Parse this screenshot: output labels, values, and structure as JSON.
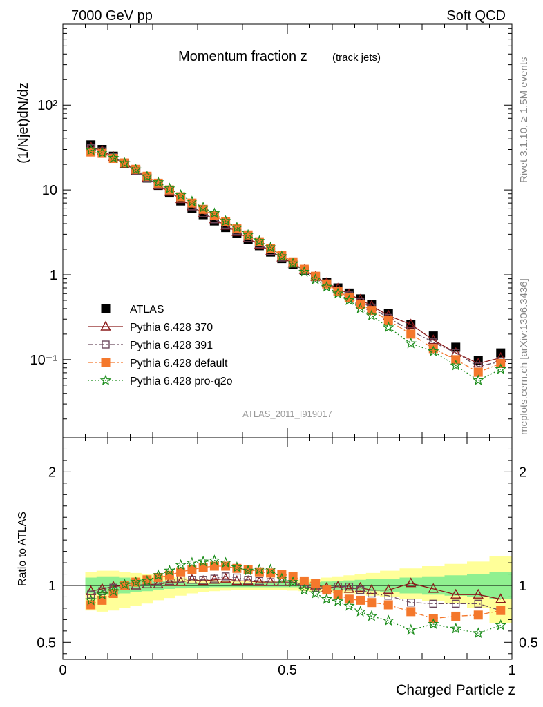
{
  "header": {
    "left": "7000 GeV pp",
    "right": "Soft QCD"
  },
  "side": {
    "rivet": "Rivet 3.1.10, ≥ 1.5M events",
    "mcplots": "mcplots.cern.ch [arXiv:1306.3436]"
  },
  "chart_data": [
    {
      "type": "scatter",
      "title": "Momentum fraction z",
      "title_sub": "(track jets)",
      "analysis_label": "ATLAS_2011_I919017",
      "ylabel": "(1/Njet)dN/dz",
      "yscale": "log",
      "ylim": [
        0.012,
        900
      ],
      "xlim": [
        0,
        1
      ],
      "yticks": [
        0.1,
        1,
        10,
        100
      ],
      "yticklabels": [
        "10⁻¹",
        "1",
        "10",
        "10²"
      ],
      "x": [
        0.0625,
        0.0875,
        0.1125,
        0.1375,
        0.1625,
        0.1875,
        0.2125,
        0.2375,
        0.2625,
        0.2875,
        0.3125,
        0.3375,
        0.3625,
        0.3875,
        0.4125,
        0.4375,
        0.4625,
        0.4875,
        0.5125,
        0.5375,
        0.5625,
        0.5875,
        0.6125,
        0.6375,
        0.6625,
        0.6875,
        0.725,
        0.775,
        0.825,
        0.875,
        0.925,
        0.975
      ],
      "series": [
        {
          "name": "ATLAS",
          "marker": "filled-square",
          "color": "#000000",
          "values": [
            34.0,
            30.0,
            25.0,
            20.5,
            16.8,
            13.8,
            11.3,
            9.2,
            7.4,
            6.1,
            5.1,
            4.3,
            3.6,
            3.1,
            2.6,
            2.2,
            1.85,
            1.55,
            1.32,
            1.12,
            0.95,
            0.82,
            0.7,
            0.61,
            0.52,
            0.45,
            0.35,
            0.26,
            0.19,
            0.14,
            0.098,
            0.12
          ]
        },
        {
          "name": "Pythia 6.428 370",
          "marker": "open-triangle",
          "color": "#8b1a1a",
          "line": "solid",
          "values": [
            32.0,
            29.0,
            24.5,
            20.5,
            16.9,
            13.9,
            11.3,
            9.5,
            7.8,
            6.4,
            5.3,
            4.5,
            3.8,
            3.2,
            2.7,
            2.25,
            1.9,
            1.6,
            1.36,
            1.14,
            0.95,
            0.8,
            0.69,
            0.59,
            0.51,
            0.43,
            0.33,
            0.26,
            0.17,
            0.12,
            0.09,
            0.105
          ]
        },
        {
          "name": "Pythia 6.428 391",
          "marker": "open-square",
          "color": "#6b4a5e",
          "line": "dashdot",
          "values": [
            31.0,
            28.5,
            24.3,
            20.5,
            16.7,
            13.9,
            11.4,
            9.6,
            7.9,
            6.4,
            5.3,
            4.5,
            3.9,
            3.3,
            2.7,
            2.3,
            1.9,
            1.6,
            1.36,
            1.12,
            0.94,
            0.78,
            0.65,
            0.57,
            0.48,
            0.41,
            0.31,
            0.22,
            0.16,
            0.12,
            0.083,
            0.095
          ]
        },
        {
          "name": "Pythia 6.428 default",
          "marker": "filled-square",
          "color": "#f4782c",
          "line": "dashdot",
          "values": [
            28.0,
            27.0,
            23.5,
            20.8,
            17.5,
            14.5,
            12.0,
            10.0,
            8.3,
            7.0,
            5.9,
            5.0,
            4.2,
            3.5,
            2.95,
            2.45,
            2.05,
            1.7,
            1.42,
            1.16,
            0.96,
            0.78,
            0.64,
            0.54,
            0.45,
            0.38,
            0.29,
            0.2,
            0.135,
            0.1,
            0.071,
            0.09
          ]
        },
        {
          "name": "Pythia 6.428 pro-q2o",
          "marker": "star",
          "color": "#1a8c1a",
          "line": "dotted",
          "values": [
            29.5,
            27.5,
            23.8,
            20.7,
            17.4,
            14.4,
            12.3,
            10.4,
            8.7,
            7.3,
            6.2,
            5.3,
            4.3,
            3.6,
            2.95,
            2.5,
            2.1,
            1.65,
            1.36,
            1.08,
            0.88,
            0.72,
            0.6,
            0.5,
            0.4,
            0.33,
            0.24,
            0.155,
            0.125,
            0.085,
            0.057,
            0.077
          ]
        }
      ],
      "legend": "lower-left"
    },
    {
      "type": "scatter",
      "ylabel": "Ratio to ATLAS",
      "xlabel": "Charged Particle z",
      "ylim": [
        0.35,
        2.3
      ],
      "xlim": [
        0,
        1
      ],
      "yticks": [
        0.5,
        1,
        2
      ],
      "yticklabels": [
        "0.5",
        "1",
        "2"
      ],
      "xticks": [
        0,
        0.5,
        1
      ],
      "xticklabels": [
        "0",
        "0.5",
        "1"
      ],
      "band_inner": {
        "color": "#90f090",
        "lo": [
          0.93,
          0.92,
          0.92,
          0.93,
          0.94,
          0.95,
          0.96,
          0.97,
          0.975,
          0.98,
          0.98,
          0.985,
          0.985,
          0.985,
          0.985,
          0.985,
          0.985,
          0.985,
          0.985,
          0.98,
          0.975,
          0.97,
          0.965,
          0.96,
          0.955,
          0.95,
          0.94,
          0.93,
          0.92,
          0.91,
          0.9,
          0.88
        ],
        "hi": [
          1.07,
          1.08,
          1.08,
          1.07,
          1.06,
          1.05,
          1.04,
          1.035,
          1.03,
          1.025,
          1.02,
          1.02,
          1.02,
          1.02,
          1.02,
          1.02,
          1.02,
          1.02,
          1.02,
          1.025,
          1.03,
          1.035,
          1.04,
          1.045,
          1.05,
          1.055,
          1.06,
          1.07,
          1.08,
          1.09,
          1.1,
          1.12
        ]
      },
      "band_outer": {
        "color": "#ffff99",
        "lo": [
          0.78,
          0.77,
          0.78,
          0.8,
          0.82,
          0.84,
          0.87,
          0.89,
          0.91,
          0.93,
          0.94,
          0.95,
          0.955,
          0.96,
          0.96,
          0.96,
          0.96,
          0.96,
          0.955,
          0.95,
          0.945,
          0.94,
          0.935,
          0.93,
          0.92,
          0.91,
          0.9,
          0.88,
          0.86,
          0.84,
          0.8,
          0.67
        ],
        "hi": [
          1.12,
          1.13,
          1.13,
          1.12,
          1.11,
          1.1,
          1.09,
          1.08,
          1.07,
          1.06,
          1.05,
          1.045,
          1.04,
          1.04,
          1.04,
          1.04,
          1.04,
          1.04,
          1.045,
          1.05,
          1.06,
          1.07,
          1.08,
          1.09,
          1.1,
          1.11,
          1.13,
          1.15,
          1.17,
          1.19,
          1.21,
          1.26
        ]
      },
      "series": [
        {
          "name": "Pythia 6.428 370",
          "marker": "open-triangle",
          "color": "#8b1a1a",
          "line": "solid",
          "values": [
            0.95,
            0.97,
            0.99,
            1.0,
            1.0,
            1.01,
            1.01,
            1.03,
            1.03,
            1.05,
            1.04,
            1.05,
            1.06,
            1.04,
            1.04,
            1.03,
            1.03,
            1.03,
            1.03,
            1.01,
            1.0,
            0.98,
            0.99,
            0.97,
            0.98,
            0.96,
            0.96,
            1.02,
            0.97,
            0.92,
            0.92,
            0.88
          ]
        },
        {
          "name": "Pythia 6.428 391",
          "marker": "open-square",
          "color": "#6b4a5e",
          "line": "dashdot",
          "values": [
            0.92,
            0.95,
            0.98,
            1.0,
            1.0,
            1.01,
            1.01,
            1.04,
            1.06,
            1.05,
            1.05,
            1.06,
            1.08,
            1.07,
            1.05,
            1.04,
            1.03,
            1.03,
            1.03,
            0.99,
            0.98,
            0.97,
            0.99,
            0.99,
            0.96,
            0.93,
            0.91,
            0.85,
            0.84,
            0.84,
            0.84,
            0.78
          ]
        },
        {
          "name": "Pythia 6.428 default",
          "marker": "filled-square",
          "color": "#f4782c",
          "line": "dashdot",
          "values": [
            0.83,
            0.87,
            0.93,
            1.0,
            1.03,
            1.05,
            1.07,
            1.09,
            1.12,
            1.14,
            1.16,
            1.17,
            1.17,
            1.15,
            1.14,
            1.12,
            1.11,
            1.1,
            1.08,
            1.04,
            1.02,
            0.96,
            0.92,
            0.88,
            0.87,
            0.85,
            0.83,
            0.77,
            0.71,
            0.73,
            0.74,
            0.78
          ]
        },
        {
          "name": "Pythia 6.428 pro-q2o",
          "marker": "star",
          "color": "#1a8c1a",
          "line": "dotted",
          "values": [
            0.87,
            0.92,
            0.95,
            1.01,
            1.03,
            1.04,
            1.09,
            1.13,
            1.18,
            1.2,
            1.21,
            1.22,
            1.2,
            1.16,
            1.13,
            1.14,
            1.14,
            1.06,
            1.03,
            0.96,
            0.93,
            0.88,
            0.86,
            0.82,
            0.77,
            0.73,
            0.69,
            0.61,
            0.66,
            0.62,
            0.58,
            0.65
          ]
        }
      ]
    }
  ]
}
